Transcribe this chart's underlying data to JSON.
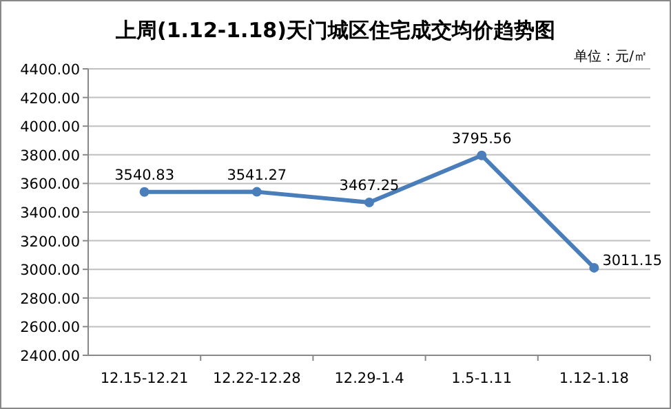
{
  "chart_data": {
    "type": "line",
    "title": "上周(1.12-1.18)天门城区住宅成交均价趋势图",
    "annotations": [
      "单位：元/㎡"
    ],
    "categories": [
      "12.15-12.21",
      "12.22-12.28",
      "12.29-1.4",
      "1.5-1.11",
      "1.12-1.18"
    ],
    "series": [
      {
        "color": "#4a7ebb",
        "values": [
          3540.83,
          3541.27,
          3467.25,
          3795.56,
          3011.15
        ]
      }
    ],
    "ylim": [
      2400,
      4400
    ],
    "yticks": [
      {
        "value": 2400,
        "label": "2400.00"
      },
      {
        "value": 2600,
        "label": "2600.00"
      },
      {
        "value": 2800,
        "label": "2800.00"
      },
      {
        "value": 3000,
        "label": "3000.00"
      },
      {
        "value": 3200,
        "label": "3200.00"
      },
      {
        "value": 3400,
        "label": "3400.00"
      },
      {
        "value": 3600,
        "label": "3600.00"
      },
      {
        "value": 3800,
        "label": "3800.00"
      },
      {
        "value": 4000,
        "label": "4000.00"
      },
      {
        "value": 4200,
        "label": "4200.00"
      },
      {
        "value": 4400,
        "label": "4400.00"
      }
    ],
    "grid": "y",
    "marker": "circle",
    "line_style": "solid",
    "data_labels": true
  }
}
